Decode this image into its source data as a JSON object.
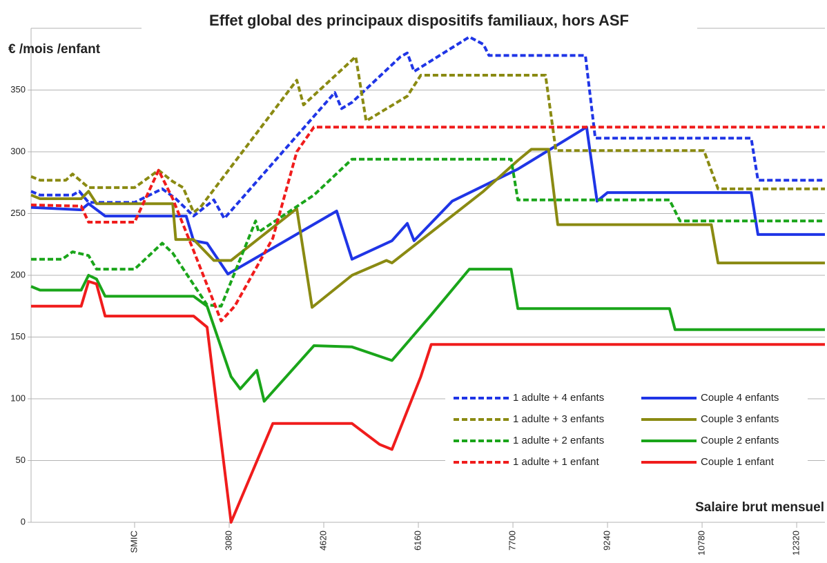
{
  "chart_data": {
    "type": "line",
    "title": "Effet global des principaux dispositifs familiaux, hors ASF",
    "y_label": "€ /mois /enfant",
    "x_label": "Salaire brut mensuel",
    "xlim": [
      -146,
      12780
    ],
    "ylim": [
      0,
      400
    ],
    "xticks": [
      {
        "value": 1540,
        "label": "SMIC"
      },
      3080,
      4620,
      6160,
      7700,
      9240,
      10780,
      12320
    ],
    "yticks": [
      0,
      50,
      100,
      150,
      200,
      250,
      300,
      350
    ],
    "grid": true,
    "legend": "lower right",
    "series": [
      {
        "name": "1 adulte + 4 enfants",
        "color": "#1f35e6",
        "style": "dashed",
        "x": [
          -146,
          0,
          530,
          640,
          790,
          1540,
          1990,
          2210,
          2500,
          2830,
          3000,
          4800,
          4910,
          5080,
          5870,
          5980,
          6090,
          6990,
          7220,
          7310,
          8880,
          9040,
          11580,
          11690,
          12780
        ],
        "values": [
          268,
          265,
          265,
          268,
          259,
          259,
          270,
          262,
          248,
          261,
          246,
          348,
          335,
          340,
          377,
          380,
          365,
          393,
          387,
          378,
          378,
          311,
          311,
          277,
          277
        ]
      },
      {
        "name": "Couple 4 enfants",
        "color": "#1f35e6",
        "style": "solid",
        "x": [
          -146,
          670,
          790,
          1060,
          2380,
          2500,
          2720,
          3060,
          4830,
          5080,
          5730,
          5980,
          6090,
          6710,
          7780,
          8900,
          9070,
          9240,
          11580,
          11690,
          12780
        ],
        "values": [
          255,
          253,
          258,
          248,
          248,
          228,
          226,
          201,
          252,
          213,
          228,
          242,
          228,
          260,
          286,
          320,
          260,
          267,
          267,
          233,
          233
        ]
      },
      {
        "name": "1 adulte + 3 enfants",
        "color": "#8a8a12",
        "style": "dashed",
        "x": [
          -146,
          0,
          420,
          530,
          790,
          1540,
          1930,
          2160,
          2330,
          2500,
          2610,
          4180,
          4290,
          5140,
          5310,
          5980,
          6200,
          8230,
          8400,
          10810,
          11040,
          12780
        ],
        "values": [
          280,
          277,
          277,
          282,
          271,
          271,
          285,
          276,
          271,
          251,
          255,
          358,
          338,
          377,
          325,
          345,
          362,
          362,
          301,
          301,
          270,
          270
        ]
      },
      {
        "name": "Couple 3 enfants",
        "color": "#8a8a12",
        "style": "solid",
        "x": [
          -146,
          0,
          670,
          790,
          920,
          2160,
          2210,
          2500,
          2830,
          3110,
          4180,
          4430,
          5080,
          5640,
          5730,
          7220,
          7780,
          8000,
          8280,
          8430,
          10930,
          11040,
          12780
        ],
        "values": [
          265,
          262,
          262,
          268,
          258,
          258,
          229,
          229,
          212,
          212,
          254,
          174,
          200,
          212,
          210,
          268,
          293,
          302,
          302,
          241,
          241,
          210,
          210
        ]
      },
      {
        "name": "1 adulte + 2 enfants",
        "color": "#1aa51a",
        "style": "dashed",
        "x": [
          -146,
          360,
          530,
          790,
          920,
          1540,
          1990,
          2160,
          2720,
          2950,
          3510,
          3560,
          4460,
          5080,
          7670,
          7780,
          10250,
          10420,
          12780
        ],
        "values": [
          213,
          213,
          219,
          216,
          205,
          205,
          226,
          218,
          176,
          175,
          244,
          235,
          265,
          294,
          294,
          261,
          261,
          244,
          244
        ]
      },
      {
        "name": "Couple 2 enfants",
        "color": "#1aa51a",
        "style": "solid",
        "x": [
          -146,
          0,
          670,
          790,
          920,
          1060,
          2500,
          2720,
          3110,
          3260,
          3530,
          3650,
          4460,
          5080,
          5730,
          6370,
          6990,
          7670,
          7780,
          10250,
          10340,
          12780
        ],
        "values": [
          191,
          188,
          188,
          200,
          197,
          183,
          183,
          175,
          118,
          108,
          123,
          98,
          143,
          142,
          131,
          168,
          205,
          205,
          173,
          173,
          156,
          156
        ]
      },
      {
        "name": "1 adulte + 1 enfant",
        "color": "#f01c1c",
        "style": "dashed",
        "x": [
          -146,
          670,
          790,
          1540,
          1930,
          2160,
          2500,
          2950,
          3170,
          3790,
          4180,
          4460,
          12780
        ],
        "values": [
          257,
          256,
          243,
          243,
          285,
          262,
          220,
          163,
          175,
          230,
          300,
          320,
          320
        ]
      },
      {
        "name": "Couple 1 enfant",
        "color": "#f01c1c",
        "style": "solid",
        "x": [
          -146,
          670,
          790,
          920,
          1060,
          2500,
          2720,
          3110,
          3790,
          5080,
          5530,
          5730,
          6200,
          6370,
          12780
        ],
        "values": [
          175,
          175,
          195,
          193,
          167,
          167,
          158,
          0,
          80,
          80,
          63,
          59,
          118,
          144,
          144
        ]
      }
    ]
  }
}
